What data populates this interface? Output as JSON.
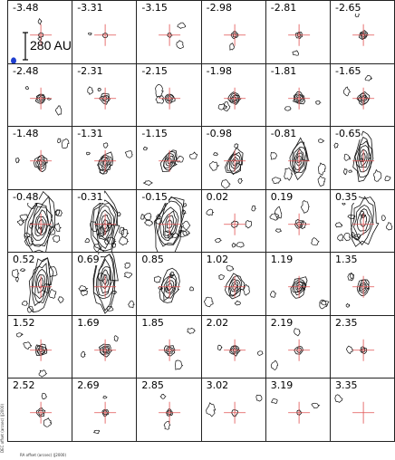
{
  "figure": {
    "rows": 7,
    "cols": 6,
    "velocities": [
      "-3.48",
      "-3.31",
      "-3.15",
      "-2.98",
      "-2.81",
      "-2.65",
      "-2.48",
      "-2.31",
      "-2.15",
      "-1.98",
      "-1.81",
      "-1.65",
      "-1.48",
      "-1.31",
      "-1.15",
      "-0.98",
      "-0.81",
      "-0.65",
      "-0.48",
      "-0.31",
      "-0.15",
      "0.02",
      "0.19",
      "0.35",
      "0.52",
      "0.69",
      "0.85",
      "1.02",
      "1.19",
      "1.35",
      "1.52",
      "1.69",
      "1.85",
      "2.02",
      "2.19",
      "2.35",
      "2.52",
      "2.69",
      "2.85",
      "3.02",
      "3.19",
      "3.35"
    ],
    "scale_bar_label": "280 AU",
    "y_axis_label": "DEC offset (arcsec) (J2000)",
    "x_axis_label": "RA offset (arcsec) (J2000)",
    "colors": {
      "contour": "#111111",
      "cross": "#e05050",
      "beam": "#1f3fd0",
      "frame": "#222222"
    }
  }
}
